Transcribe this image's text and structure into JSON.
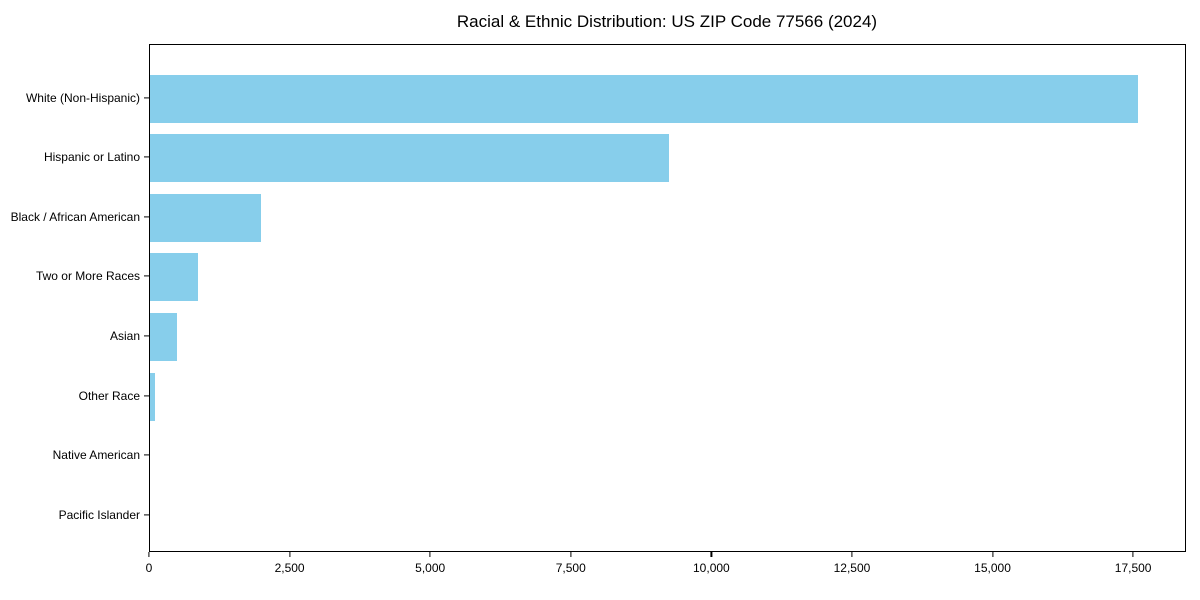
{
  "chart_data": {
    "type": "bar",
    "orientation": "horizontal",
    "title": "Racial & Ethnic Distribution: US ZIP Code 77566 (2024)",
    "categories": [
      "White (Non-Hispanic)",
      "Hispanic or Latino",
      "Black / African American",
      "Two or More Races",
      "Asian",
      "Other Race",
      "Native American",
      "Pacific Islander"
    ],
    "values": [
      17560,
      9230,
      1975,
      860,
      480,
      90,
      0,
      0
    ],
    "xlabel": "",
    "ylabel": "",
    "xlim": [
      0,
      18440
    ],
    "x_ticks": [
      0,
      2500,
      5000,
      7500,
      10000,
      12500,
      15000,
      17500
    ],
    "x_tick_labels": [
      "0",
      "2,500",
      "5,000",
      "7,500",
      "10,000",
      "12,500",
      "15,000",
      "17,500"
    ],
    "bar_color": "#87CEEB",
    "spine_color": "#000000",
    "text_color": "#000000",
    "grid": false,
    "legend": null
  }
}
